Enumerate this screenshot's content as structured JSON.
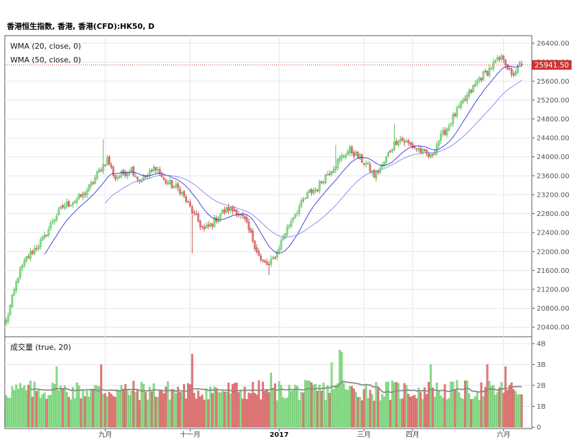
{
  "header": {
    "title": "香港恒生指数, 香港, 香港(CFD):HK50, D"
  },
  "indicators": {
    "wma20": {
      "label": "WMA (20, close, 0)",
      "color": "#2222cc"
    },
    "wma50": {
      "label": "WMA (50, close, 0)",
      "color": "#7777ee"
    },
    "volume": {
      "label": "成交量 (true, 20)",
      "ma_color": "#888888"
    }
  },
  "colors": {
    "up": "#5cbf5c",
    "down": "#cc5555",
    "up_fill": "#8ede8e",
    "down_fill": "#e07b7b",
    "last_price": "#cc3333",
    "grid": "#e6e6e6",
    "axis": "#333333"
  },
  "last_price": {
    "value": 25941.5,
    "label": "25941.50"
  },
  "chart_data": [
    {
      "type": "candlestick",
      "title": "香港恒生指数, 香港, 香港(CFD):HK50, D",
      "xlabel": "",
      "ylabel": "",
      "ylim": [
        20200,
        26560
      ],
      "y_ticks": [
        20400,
        20800,
        21200,
        21600,
        22000,
        22400,
        22800,
        23200,
        23600,
        24000,
        24400,
        24800,
        25200,
        25600,
        26000,
        26400
      ],
      "y_tick_labels": [
        "20400.00",
        "20800.00",
        "21200.00",
        "21600.00",
        "22000.00",
        "22400.00",
        "22800.00",
        "23200.00",
        "23600.00",
        "24000.00",
        "24400.00",
        "24800.00",
        "25200.00",
        "25600.00",
        "26000.00",
        "26400.00"
      ],
      "x_tick_labels": [
        {
          "label": "九月",
          "index": 49,
          "bold": false
        },
        {
          "label": "十一月",
          "index": 91,
          "bold": false
        },
        {
          "label": "2017",
          "index": 135,
          "bold": true
        },
        {
          "label": "三月",
          "index": 177,
          "bold": false
        },
        {
          "label": "四月",
          "index": 201,
          "bold": false
        },
        {
          "label": "六月",
          "index": 246,
          "bold": false
        }
      ],
      "close_anchors": [
        [
          0,
          20520
        ],
        [
          3,
          21000
        ],
        [
          6,
          21500
        ],
        [
          10,
          21850
        ],
        [
          14,
          22050
        ],
        [
          19,
          22300
        ],
        [
          23,
          22650
        ],
        [
          28,
          22950
        ],
        [
          33,
          23050
        ],
        [
          38,
          23200
        ],
        [
          42,
          23400
        ],
        [
          46,
          23700
        ],
        [
          50,
          23950
        ],
        [
          54,
          23550
        ],
        [
          58,
          23650
        ],
        [
          62,
          23750
        ],
        [
          66,
          23500
        ],
        [
          70,
          23600
        ],
        [
          74,
          23800
        ],
        [
          78,
          23500
        ],
        [
          82,
          23400
        ],
        [
          86,
          23300
        ],
        [
          90,
          23000
        ],
        [
          94,
          22700
        ],
        [
          98,
          22450
        ],
        [
          102,
          22600
        ],
        [
          106,
          22800
        ],
        [
          110,
          22900
        ],
        [
          114,
          22850
        ],
        [
          118,
          22650
        ],
        [
          122,
          22250
        ],
        [
          126,
          21800
        ],
        [
          130,
          21700
        ],
        [
          134,
          22000
        ],
        [
          138,
          22400
        ],
        [
          142,
          22750
        ],
        [
          146,
          23000
        ],
        [
          150,
          23250
        ],
        [
          154,
          23350
        ],
        [
          158,
          23600
        ],
        [
          162,
          23800
        ],
        [
          166,
          24000
        ],
        [
          170,
          24150
        ],
        [
          174,
          24000
        ],
        [
          178,
          23850
        ],
        [
          182,
          23600
        ],
        [
          186,
          23800
        ],
        [
          190,
          24150
        ],
        [
          194,
          24400
        ],
        [
          198,
          24300
        ],
        [
          202,
          24200
        ],
        [
          206,
          24100
        ],
        [
          210,
          24000
        ],
        [
          214,
          24350
        ],
        [
          218,
          24600
        ],
        [
          222,
          24900
        ],
        [
          226,
          25150
        ],
        [
          230,
          25400
        ],
        [
          234,
          25650
        ],
        [
          238,
          25800
        ],
        [
          242,
          26000
        ],
        [
          246,
          26100
        ],
        [
          250,
          25700
        ],
        [
          254,
          25941.5
        ]
      ],
      "series": [
        {
          "name": "WMA (20, close, 0)",
          "color": "#2222cc"
        },
        {
          "name": "WMA (50, close, 0)",
          "color": "#7777ee"
        }
      ]
    },
    {
      "type": "bar",
      "title": "成交量 (true, 20)",
      "ylim": [
        0,
        4.2
      ],
      "y_ticks": [
        0,
        1,
        2,
        3,
        4
      ],
      "y_tick_labels": [
        "0",
        "1B",
        "2B",
        "3B",
        "4B"
      ],
      "base_level": 1.75,
      "spikes": [
        [
          25,
          2.9
        ],
        [
          47,
          3.0
        ],
        [
          92,
          3.5
        ],
        [
          131,
          2.6
        ],
        [
          161,
          3.1
        ],
        [
          165,
          3.7
        ],
        [
          166,
          3.6
        ],
        [
          210,
          3.0
        ],
        [
          238,
          3.0
        ],
        [
          247,
          2.9
        ]
      ],
      "series": [
        {
          "name": "成交量 (true, 20)"
        }
      ]
    }
  ]
}
